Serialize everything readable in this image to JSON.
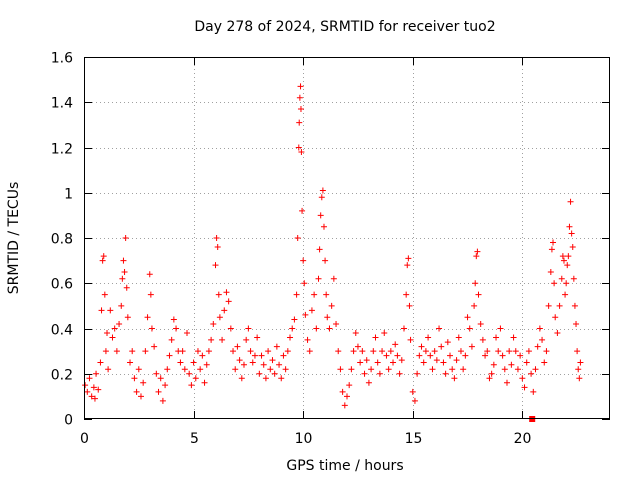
{
  "chart_data": {
    "type": "scatter",
    "title": "Day 278 of 2024, SRMTID for receiver tuo2",
    "xlabel": "GPS time / hours",
    "ylabel": "SRMTID / TECUs",
    "xlim": [
      0,
      24
    ],
    "ylim": [
      0,
      1.6
    ],
    "xticks": [
      0,
      5,
      10,
      15,
      20
    ],
    "xtick_labels": [
      "0",
      "5",
      "10",
      "15",
      "20"
    ],
    "yticks": [
      0,
      0.2,
      0.4,
      0.6,
      0.8,
      1.0,
      1.2,
      1.4,
      1.6
    ],
    "ytick_labels": [
      "0",
      "0.2",
      "0.4",
      "0.6",
      "0.8",
      "1",
      "1.2",
      "1.4",
      "1.6"
    ],
    "grid": true,
    "marker": "plus",
    "marker_color": "#ff0000",
    "series": [
      {
        "name": "SRMTID",
        "color": "#ff0000",
        "points": [
          [
            0.05,
            0.15
          ],
          [
            0.15,
            0.12
          ],
          [
            0.25,
            0.18
          ],
          [
            0.35,
            0.1
          ],
          [
            0.45,
            0.14
          ],
          [
            0.5,
            0.09
          ],
          [
            0.55,
            0.2
          ],
          [
            0.65,
            0.13
          ],
          [
            0.75,
            0.25
          ],
          [
            0.8,
            0.48
          ],
          [
            0.85,
            0.7
          ],
          [
            0.9,
            0.72
          ],
          [
            0.95,
            0.55
          ],
          [
            1.0,
            0.3
          ],
          [
            1.05,
            0.38
          ],
          [
            1.1,
            0.22
          ],
          [
            1.2,
            0.48
          ],
          [
            1.3,
            0.36
          ],
          [
            1.4,
            0.4
          ],
          [
            1.5,
            0.3
          ],
          [
            1.6,
            0.42
          ],
          [
            1.7,
            0.5
          ],
          [
            1.75,
            0.62
          ],
          [
            1.8,
            0.7
          ],
          [
            1.85,
            0.65
          ],
          [
            1.9,
            0.8
          ],
          [
            1.95,
            0.58
          ],
          [
            2.0,
            0.45
          ],
          [
            2.1,
            0.25
          ],
          [
            2.2,
            0.3
          ],
          [
            2.3,
            0.18
          ],
          [
            2.4,
            0.12
          ],
          [
            2.5,
            0.22
          ],
          [
            2.6,
            0.1
          ],
          [
            2.7,
            0.16
          ],
          [
            2.8,
            0.3
          ],
          [
            2.9,
            0.45
          ],
          [
            3.0,
            0.64
          ],
          [
            3.05,
            0.55
          ],
          [
            3.1,
            0.4
          ],
          [
            3.2,
            0.32
          ],
          [
            3.3,
            0.2
          ],
          [
            3.4,
            0.12
          ],
          [
            3.5,
            0.18
          ],
          [
            3.6,
            0.08
          ],
          [
            3.7,
            0.15
          ],
          [
            3.8,
            0.22
          ],
          [
            3.9,
            0.28
          ],
          [
            4.0,
            0.35
          ],
          [
            4.1,
            0.44
          ],
          [
            4.2,
            0.4
          ],
          [
            4.3,
            0.3
          ],
          [
            4.4,
            0.25
          ],
          [
            4.5,
            0.3
          ],
          [
            4.6,
            0.22
          ],
          [
            4.7,
            0.38
          ],
          [
            4.8,
            0.2
          ],
          [
            4.9,
            0.15
          ],
          [
            5.0,
            0.25
          ],
          [
            5.1,
            0.18
          ],
          [
            5.2,
            0.3
          ],
          [
            5.3,
            0.22
          ],
          [
            5.4,
            0.28
          ],
          [
            5.5,
            0.16
          ],
          [
            5.6,
            0.24
          ],
          [
            5.7,
            0.3
          ],
          [
            5.8,
            0.35
          ],
          [
            5.9,
            0.42
          ],
          [
            6.0,
            0.68
          ],
          [
            6.05,
            0.8
          ],
          [
            6.1,
            0.76
          ],
          [
            6.15,
            0.55
          ],
          [
            6.2,
            0.45
          ],
          [
            6.3,
            0.35
          ],
          [
            6.4,
            0.48
          ],
          [
            6.5,
            0.56
          ],
          [
            6.6,
            0.52
          ],
          [
            6.7,
            0.4
          ],
          [
            6.8,
            0.3
          ],
          [
            6.9,
            0.22
          ],
          [
            7.0,
            0.32
          ],
          [
            7.1,
            0.26
          ],
          [
            7.2,
            0.18
          ],
          [
            7.3,
            0.24
          ],
          [
            7.4,
            0.35
          ],
          [
            7.5,
            0.4
          ],
          [
            7.6,
            0.3
          ],
          [
            7.7,
            0.25
          ],
          [
            7.8,
            0.28
          ],
          [
            7.9,
            0.36
          ],
          [
            8.0,
            0.2
          ],
          [
            8.1,
            0.28
          ],
          [
            8.2,
            0.24
          ],
          [
            8.3,
            0.18
          ],
          [
            8.4,
            0.3
          ],
          [
            8.5,
            0.22
          ],
          [
            8.6,
            0.26
          ],
          [
            8.7,
            0.2
          ],
          [
            8.8,
            0.32
          ],
          [
            8.9,
            0.24
          ],
          [
            9.0,
            0.18
          ],
          [
            9.1,
            0.28
          ],
          [
            9.2,
            0.22
          ],
          [
            9.3,
            0.3
          ],
          [
            9.4,
            0.36
          ],
          [
            9.5,
            0.4
          ],
          [
            9.6,
            0.44
          ],
          [
            9.7,
            0.55
          ],
          [
            9.75,
            0.8
          ],
          [
            9.8,
            1.2
          ],
          [
            9.82,
            1.31
          ],
          [
            9.85,
            1.42
          ],
          [
            9.88,
            1.47
          ],
          [
            9.9,
            1.37
          ],
          [
            9.92,
            1.18
          ],
          [
            9.95,
            0.92
          ],
          [
            10.0,
            0.7
          ],
          [
            10.05,
            0.6
          ],
          [
            10.1,
            0.46
          ],
          [
            10.2,
            0.35
          ],
          [
            10.3,
            0.3
          ],
          [
            10.4,
            0.48
          ],
          [
            10.5,
            0.55
          ],
          [
            10.6,
            0.4
          ],
          [
            10.7,
            0.62
          ],
          [
            10.75,
            0.75
          ],
          [
            10.8,
            0.9
          ],
          [
            10.85,
            0.98
          ],
          [
            10.9,
            1.01
          ],
          [
            10.95,
            0.85
          ],
          [
            11.0,
            0.7
          ],
          [
            11.05,
            0.55
          ],
          [
            11.1,
            0.45
          ],
          [
            11.2,
            0.4
          ],
          [
            11.3,
            0.5
          ],
          [
            11.4,
            0.62
          ],
          [
            11.5,
            0.42
          ],
          [
            11.6,
            0.3
          ],
          [
            11.7,
            0.22
          ],
          [
            11.8,
            0.12
          ],
          [
            11.9,
            0.06
          ],
          [
            12.0,
            0.1
          ],
          [
            12.1,
            0.15
          ],
          [
            12.2,
            0.22
          ],
          [
            12.3,
            0.3
          ],
          [
            12.4,
            0.38
          ],
          [
            12.5,
            0.32
          ],
          [
            12.6,
            0.25
          ],
          [
            12.7,
            0.3
          ],
          [
            12.8,
            0.2
          ],
          [
            12.9,
            0.26
          ],
          [
            13.0,
            0.16
          ],
          [
            13.1,
            0.22
          ],
          [
            13.2,
            0.3
          ],
          [
            13.3,
            0.36
          ],
          [
            13.4,
            0.25
          ],
          [
            13.5,
            0.2
          ],
          [
            13.6,
            0.3
          ],
          [
            13.7,
            0.38
          ],
          [
            13.8,
            0.28
          ],
          [
            13.9,
            0.22
          ],
          [
            14.0,
            0.3
          ],
          [
            14.1,
            0.25
          ],
          [
            14.2,
            0.33
          ],
          [
            14.3,
            0.28
          ],
          [
            14.4,
            0.2
          ],
          [
            14.5,
            0.26
          ],
          [
            14.6,
            0.4
          ],
          [
            14.7,
            0.55
          ],
          [
            14.75,
            0.68
          ],
          [
            14.8,
            0.71
          ],
          [
            14.85,
            0.5
          ],
          [
            14.9,
            0.35
          ],
          [
            15.0,
            0.12
          ],
          [
            15.1,
            0.08
          ],
          [
            15.2,
            0.2
          ],
          [
            15.3,
            0.28
          ],
          [
            15.4,
            0.32
          ],
          [
            15.5,
            0.25
          ],
          [
            15.6,
            0.3
          ],
          [
            15.7,
            0.36
          ],
          [
            15.8,
            0.28
          ],
          [
            15.9,
            0.22
          ],
          [
            16.0,
            0.3
          ],
          [
            16.1,
            0.26
          ],
          [
            16.2,
            0.4
          ],
          [
            16.3,
            0.32
          ],
          [
            16.4,
            0.25
          ],
          [
            16.5,
            0.2
          ],
          [
            16.6,
            0.34
          ],
          [
            16.7,
            0.28
          ],
          [
            16.8,
            0.22
          ],
          [
            16.9,
            0.18
          ],
          [
            17.0,
            0.26
          ],
          [
            17.1,
            0.36
          ],
          [
            17.2,
            0.3
          ],
          [
            17.3,
            0.22
          ],
          [
            17.4,
            0.28
          ],
          [
            17.5,
            0.45
          ],
          [
            17.6,
            0.4
          ],
          [
            17.7,
            0.32
          ],
          [
            17.8,
            0.5
          ],
          [
            17.85,
            0.6
          ],
          [
            17.9,
            0.72
          ],
          [
            17.95,
            0.74
          ],
          [
            18.0,
            0.55
          ],
          [
            18.1,
            0.42
          ],
          [
            18.2,
            0.35
          ],
          [
            18.3,
            0.28
          ],
          [
            18.4,
            0.3
          ],
          [
            18.5,
            0.18
          ],
          [
            18.6,
            0.2
          ],
          [
            18.7,
            0.24
          ],
          [
            18.8,
            0.36
          ],
          [
            18.9,
            0.3
          ],
          [
            19.0,
            0.4
          ],
          [
            19.1,
            0.28
          ],
          [
            19.2,
            0.22
          ],
          [
            19.3,
            0.16
          ],
          [
            19.4,
            0.3
          ],
          [
            19.5,
            0.24
          ],
          [
            19.6,
            0.36
          ],
          [
            19.7,
            0.3
          ],
          [
            19.8,
            0.22
          ],
          [
            19.9,
            0.28
          ],
          [
            20.0,
            0.18
          ],
          [
            20.1,
            0.14
          ],
          [
            20.2,
            0.25
          ],
          [
            20.3,
            0.3
          ],
          [
            20.4,
            0.2
          ],
          [
            20.5,
            0.12
          ],
          [
            20.6,
            0.22
          ],
          [
            20.7,
            0.32
          ],
          [
            20.8,
            0.4
          ],
          [
            20.9,
            0.35
          ],
          [
            21.0,
            0.25
          ],
          [
            21.1,
            0.3
          ],
          [
            21.2,
            0.5
          ],
          [
            21.3,
            0.65
          ],
          [
            21.35,
            0.75
          ],
          [
            21.4,
            0.78
          ],
          [
            21.45,
            0.6
          ],
          [
            21.5,
            0.45
          ],
          [
            21.6,
            0.38
          ],
          [
            21.7,
            0.5
          ],
          [
            21.8,
            0.62
          ],
          [
            21.85,
            0.72
          ],
          [
            21.9,
            0.7
          ],
          [
            21.95,
            0.55
          ],
          [
            22.0,
            0.6
          ],
          [
            22.05,
            0.68
          ],
          [
            22.1,
            0.72
          ],
          [
            22.15,
            0.85
          ],
          [
            22.2,
            0.96
          ],
          [
            22.25,
            0.82
          ],
          [
            22.3,
            0.76
          ],
          [
            22.35,
            0.62
          ],
          [
            22.4,
            0.5
          ],
          [
            22.45,
            0.42
          ],
          [
            22.5,
            0.3
          ],
          [
            22.55,
            0.22
          ],
          [
            22.6,
            0.18
          ],
          [
            22.65,
            0.25
          ]
        ]
      }
    ],
    "outlier_marker": {
      "x": 20.45,
      "y": 0.0,
      "shape": "filled-square"
    }
  }
}
